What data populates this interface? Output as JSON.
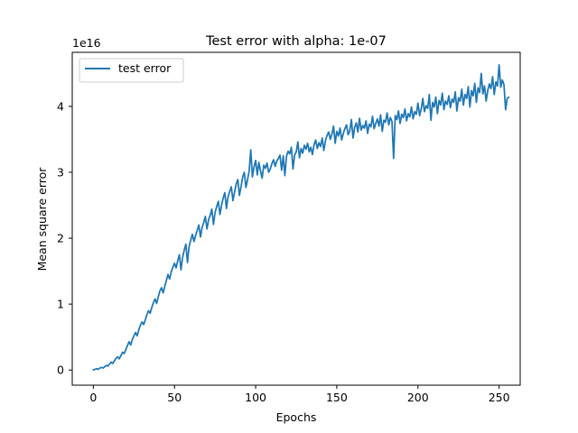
{
  "chart_data": {
    "type": "line",
    "title": "Test error with alpha: 1e-07",
    "xlabel": "Epochs",
    "ylabel": "Mean square error",
    "y_offset_label": "1e16",
    "y_scale_factor": 1e+16,
    "xlim": [
      -13,
      263
    ],
    "ylim": [
      -0.23,
      4.82
    ],
    "xticks": [
      0,
      50,
      100,
      150,
      200,
      250
    ],
    "yticks": [
      0,
      1,
      2,
      3,
      4
    ],
    "grid": false,
    "legend": "upper left",
    "series": [
      {
        "name": "test error",
        "color": "#1f77b4",
        "x_start": 0,
        "x_step": 1,
        "values": [
          0.0,
          0.01,
          0.02,
          0.01,
          0.03,
          0.04,
          0.03,
          0.05,
          0.07,
          0.06,
          0.09,
          0.12,
          0.1,
          0.14,
          0.18,
          0.2,
          0.17,
          0.22,
          0.27,
          0.25,
          0.31,
          0.37,
          0.43,
          0.38,
          0.46,
          0.52,
          0.57,
          0.52,
          0.61,
          0.68,
          0.73,
          0.69,
          0.76,
          0.84,
          0.9,
          0.86,
          0.95,
          1.02,
          1.08,
          1.01,
          1.11,
          1.2,
          1.25,
          1.17,
          1.27,
          1.36,
          1.45,
          1.38,
          1.49,
          1.56,
          1.62,
          1.55,
          1.66,
          1.75,
          1.52,
          1.71,
          1.82,
          1.91,
          1.63,
          1.88,
          1.97,
          2.06,
          1.95,
          2.04,
          2.12,
          2.2,
          2.02,
          2.16,
          2.24,
          2.33,
          2.14,
          2.28,
          2.35,
          2.44,
          2.21,
          2.39,
          2.48,
          2.56,
          2.36,
          2.5,
          2.61,
          2.69,
          2.45,
          2.63,
          2.71,
          2.78,
          2.57,
          2.7,
          2.82,
          2.89,
          2.65,
          2.78,
          2.93,
          3.0,
          2.77,
          2.89,
          3.02,
          3.34,
          2.93,
          3.08,
          3.18,
          2.96,
          3.15,
          3.02,
          2.91,
          3.11,
          3.06,
          3.14,
          3.0,
          3.05,
          3.13,
          3.19,
          3.09,
          3.17,
          3.21,
          3.26,
          3.03,
          3.25,
          2.95,
          3.24,
          3.32,
          3.28,
          3.38,
          3.05,
          3.26,
          3.31,
          3.46,
          3.22,
          3.36,
          3.29,
          3.41,
          3.35,
          3.44,
          3.31,
          3.38,
          3.27,
          3.42,
          3.49,
          3.36,
          3.45,
          3.39,
          3.52,
          3.33,
          3.48,
          3.56,
          3.61,
          3.5,
          3.58,
          3.7,
          3.44,
          3.62,
          3.55,
          3.67,
          3.49,
          3.59,
          3.66,
          3.72,
          3.57,
          3.63,
          3.8,
          3.52,
          3.68,
          3.75,
          3.61,
          3.82,
          3.64,
          3.71,
          3.67,
          3.78,
          3.59,
          3.73,
          3.69,
          3.85,
          3.66,
          3.74,
          3.81,
          3.7,
          3.87,
          3.62,
          3.79,
          3.76,
          3.9,
          3.72,
          3.83,
          3.77,
          3.21,
          3.86,
          3.8,
          3.93,
          3.74,
          3.88,
          3.83,
          3.96,
          3.78,
          3.89,
          3.84,
          3.99,
          3.81,
          3.92,
          3.88,
          4.05,
          3.86,
          3.96,
          4.12,
          3.92,
          4.01,
          3.97,
          4.18,
          3.79,
          4.06,
          3.99,
          4.14,
          3.89,
          4.09,
          4.02,
          4.2,
          3.95,
          4.08,
          4.03,
          4.16,
          3.98,
          4.11,
          4.06,
          4.22,
          3.93,
          4.13,
          4.08,
          4.26,
          4.02,
          4.18,
          4.12,
          4.3,
          3.99,
          4.24,
          4.16,
          4.35,
          4.06,
          4.28,
          4.21,
          4.5,
          4.19,
          4.31,
          4.08,
          4.24,
          4.34,
          4.27,
          4.45,
          4.18,
          4.37,
          4.31,
          4.63,
          4.29,
          4.4,
          4.33,
          3.95,
          4.12,
          4.14
        ]
      }
    ]
  }
}
